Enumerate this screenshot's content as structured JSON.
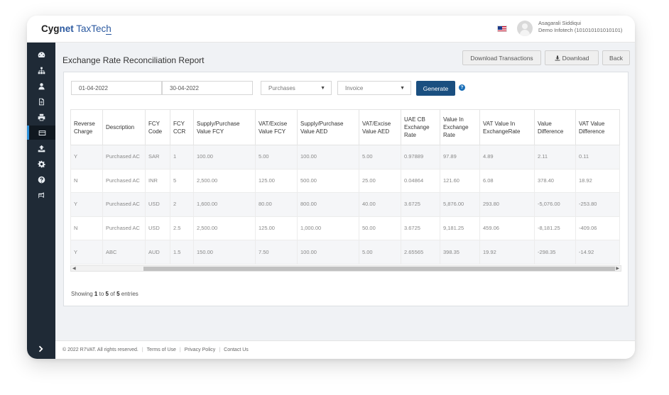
{
  "brand": {
    "part1": "Cyg",
    "part2": "net",
    "part3": " TaxTec",
    "part4": "h"
  },
  "user": {
    "name": "Asagarali Siddiqui",
    "org": "Demo Infotech (101010101010101)"
  },
  "sidebar": {
    "items": [
      {
        "icon": "dashboard-icon"
      },
      {
        "icon": "sitemap-icon"
      },
      {
        "icon": "user-icon"
      },
      {
        "icon": "document-icon"
      },
      {
        "icon": "print-icon"
      },
      {
        "icon": "table-icon",
        "active": true
      },
      {
        "icon": "upload-icon"
      },
      {
        "icon": "settings-icon"
      },
      {
        "icon": "help-icon"
      },
      {
        "icon": "megaphone-icon"
      }
    ],
    "toggle_icon": "chevron-right-icon"
  },
  "page": {
    "title": "Exchange Rate Reconciliation Report",
    "buttons": {
      "download_transactions": "Download Transactions",
      "download": "Download",
      "back": "Back"
    }
  },
  "filters": {
    "from_date": "01-04-2022",
    "to_date": "30-04-2022",
    "type": "Purchases",
    "doc_type": "Invoice",
    "generate": "Generate",
    "help_glyph": "?"
  },
  "table": {
    "headers": [
      "Reverse Charge",
      "Description",
      "FCY Code",
      "FCY CCR",
      "Supply/Purchase Value FCY",
      "VAT/Excise Value FCY",
      "Supply/Purchase Value AED",
      "VAT/Excise Value AED",
      "UAE CB Exchange Rate",
      "Value In Exchange Rate",
      "VAT Value In ExchangeRate",
      "Value Difference",
      "VAT Value Difference"
    ],
    "rows": [
      [
        "Y",
        "Purchased AC",
        "SAR",
        "1",
        "100.00",
        "5.00",
        "100.00",
        "5.00",
        "0.97889",
        "97.89",
        "4.89",
        "2.11",
        "0.11"
      ],
      [
        "N",
        "Purchased AC",
        "INR",
        "5",
        "2,500.00",
        "125.00",
        "500.00",
        "25.00",
        "0.04864",
        "121.60",
        "6.08",
        "378.40",
        "18.92"
      ],
      [
        "Y",
        "Purchased AC",
        "USD",
        "2",
        "1,600.00",
        "80.00",
        "800.00",
        "40.00",
        "3.6725",
        "5,876.00",
        "293.80",
        "-5,076.00",
        "-253.80"
      ],
      [
        "N",
        "Purchased AC",
        "USD",
        "2.5",
        "2,500.00",
        "125.00",
        "1,000.00",
        "50.00",
        "3.6725",
        "9,181.25",
        "459.06",
        "-8,181.25",
        "-409.06"
      ],
      [
        "Y",
        "ABC",
        "AUD",
        "1.5",
        "150.00",
        "7.50",
        "100.00",
        "5.00",
        "2.65565",
        "398.35",
        "19.92",
        "-298.35",
        "-14.92"
      ]
    ]
  },
  "pagination": {
    "prefix": "Showing ",
    "from": "1",
    "mid1": " to ",
    "to": "5",
    "mid2": " of ",
    "total": "5",
    "suffix": " entries"
  },
  "footer": {
    "copyright": "© 2022 R7VAT. All rights reserved.",
    "links": [
      "Terms of Use",
      "Privacy Policy",
      "Contact Us"
    ]
  },
  "colors": {
    "sidebar": "#1f2a36",
    "primary": "#1a4f80",
    "accent": "#2d8fd8"
  }
}
